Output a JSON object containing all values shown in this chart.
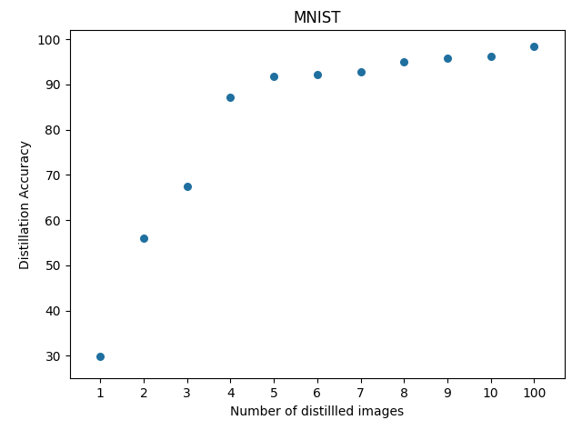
{
  "title": "MNIST",
  "xlabel": "Number of distillled images",
  "ylabel": "Distillation Accuracy",
  "x": [
    1,
    2,
    3,
    4,
    5,
    6,
    7,
    8,
    9,
    10,
    100
  ],
  "y": [
    29.8,
    56.0,
    67.5,
    87.2,
    91.7,
    92.2,
    92.8,
    95.0,
    95.7,
    96.1,
    98.5
  ],
  "dot_color": "#1f6f9f",
  "dot_size": 30,
  "ylim": [
    25,
    102
  ],
  "yticks": [
    30,
    40,
    50,
    60,
    70,
    80,
    90,
    100
  ],
  "xtick_labels": [
    "1",
    "2",
    "3",
    "4",
    "5",
    "6",
    "7",
    "8",
    "9",
    "10",
    "100"
  ],
  "title_fontsize": 12,
  "label_fontsize": 10,
  "tick_fontsize": 10,
  "figsize": [
    6.4,
    4.73
  ],
  "dpi": 100
}
